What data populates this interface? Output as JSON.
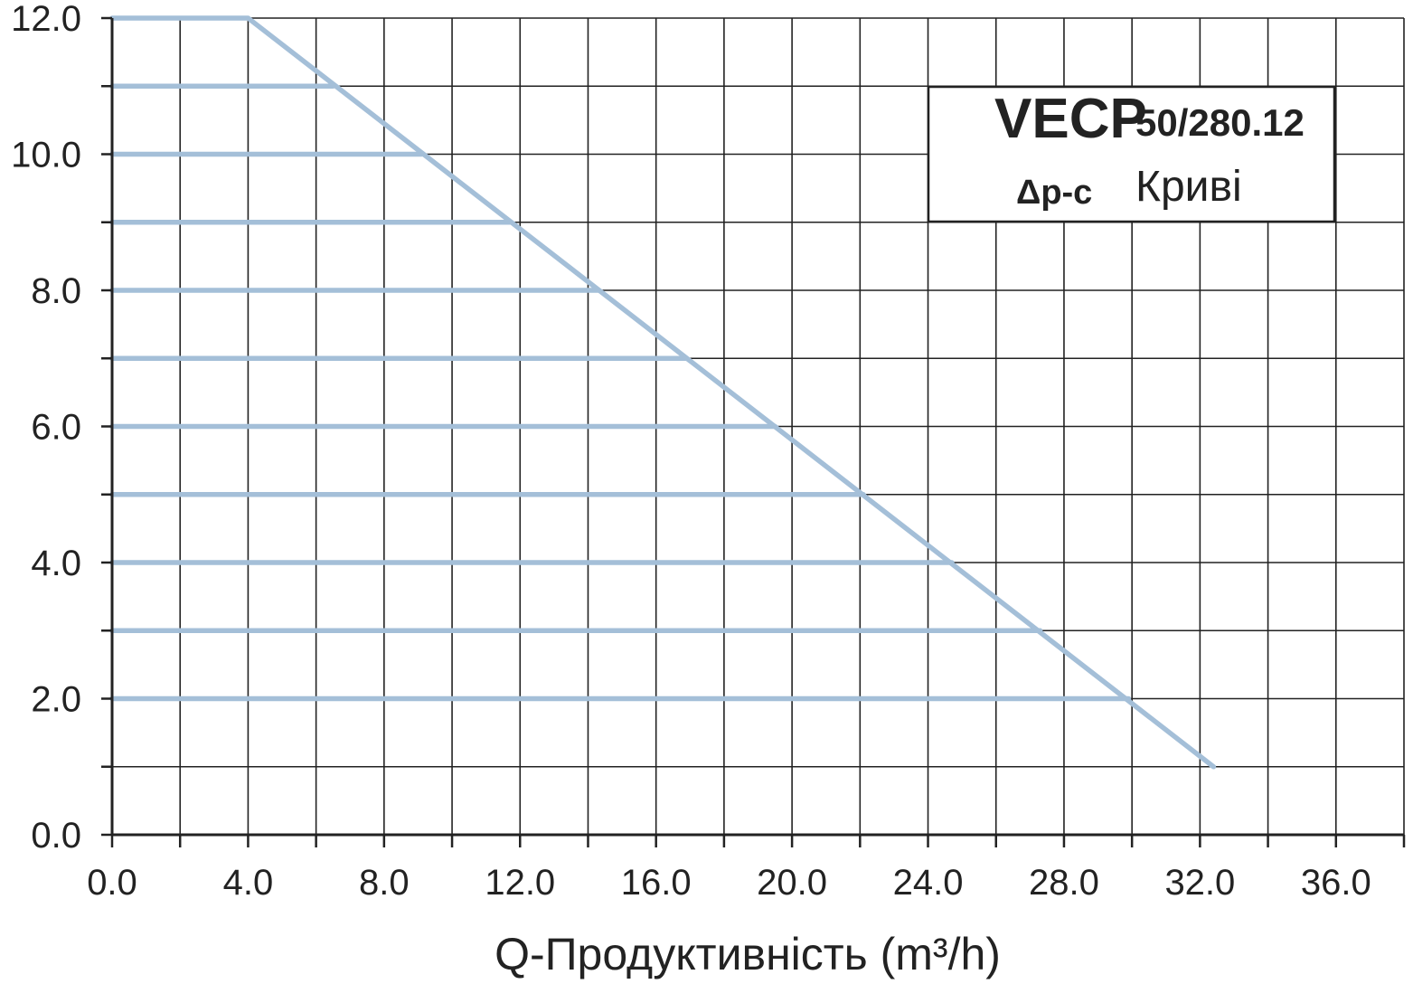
{
  "chart_data": {
    "type": "line",
    "xlabel": "Q-Продуктивність (m³/h)",
    "ylabel": "",
    "xlim": [
      0,
      38
    ],
    "ylim": [
      0,
      12
    ],
    "x_tick_labels": [
      "0.0",
      "4.0",
      "8.0",
      "12.0",
      "16.0",
      "20.0",
      "24.0",
      "28.0",
      "32.0",
      "36.0"
    ],
    "y_tick_labels": [
      "0.0",
      "2.0",
      "4.0",
      "6.0",
      "8.0",
      "10.0",
      "12.0"
    ],
    "grid": true,
    "legend": {
      "position": "top-right",
      "model": "VECP",
      "size": "50/280.12",
      "mode": "Δp-c",
      "curves_label": "Криві"
    },
    "curve_color": "#a4bfd8",
    "grid_color": "#222222",
    "series": [
      {
        "x": [
          0,
          6.5
        ],
        "y": [
          11,
          11
        ]
      },
      {
        "x": [
          0,
          9.1
        ],
        "y": [
          10,
          10
        ]
      },
      {
        "x": [
          0,
          11.7
        ],
        "y": [
          9,
          9
        ]
      },
      {
        "x": [
          0,
          14.3
        ],
        "y": [
          8,
          8
        ]
      },
      {
        "x": [
          0,
          16.9
        ],
        "y": [
          7,
          7
        ]
      },
      {
        "x": [
          0,
          19.5
        ],
        "y": [
          6,
          6
        ]
      },
      {
        "x": [
          0,
          22.1
        ],
        "y": [
          5,
          5
        ]
      },
      {
        "x": [
          0,
          24.7
        ],
        "y": [
          4,
          4
        ]
      },
      {
        "x": [
          0,
          27.3
        ],
        "y": [
          3,
          3
        ]
      },
      {
        "x": [
          0,
          29.9
        ],
        "y": [
          2,
          2
        ]
      },
      {
        "x": [
          0,
          4.0,
          32.4
        ],
        "y": [
          12,
          12,
          1.0
        ]
      }
    ]
  }
}
